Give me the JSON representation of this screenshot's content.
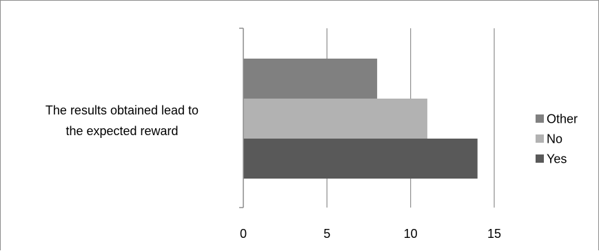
{
  "chart_data": {
    "type": "bar",
    "orientation": "horizontal",
    "categories": [
      "The results obtained lead to the expected reward"
    ],
    "category_label_lines": [
      "The results obtained lead to",
      "the expected reward"
    ],
    "series": [
      {
        "name": "Other",
        "values": [
          8
        ],
        "color": "#808080"
      },
      {
        "name": "No",
        "values": [
          11
        ],
        "color": "#b2b2b2"
      },
      {
        "name": "Yes",
        "values": [
          14
        ],
        "color": "#595959"
      }
    ],
    "xlim": [
      0,
      15
    ],
    "x_ticks": [
      "0",
      "5",
      "10",
      "15"
    ],
    "grid": "vertical",
    "legend_position": "right",
    "gridline_color": "#8c8c8c"
  }
}
